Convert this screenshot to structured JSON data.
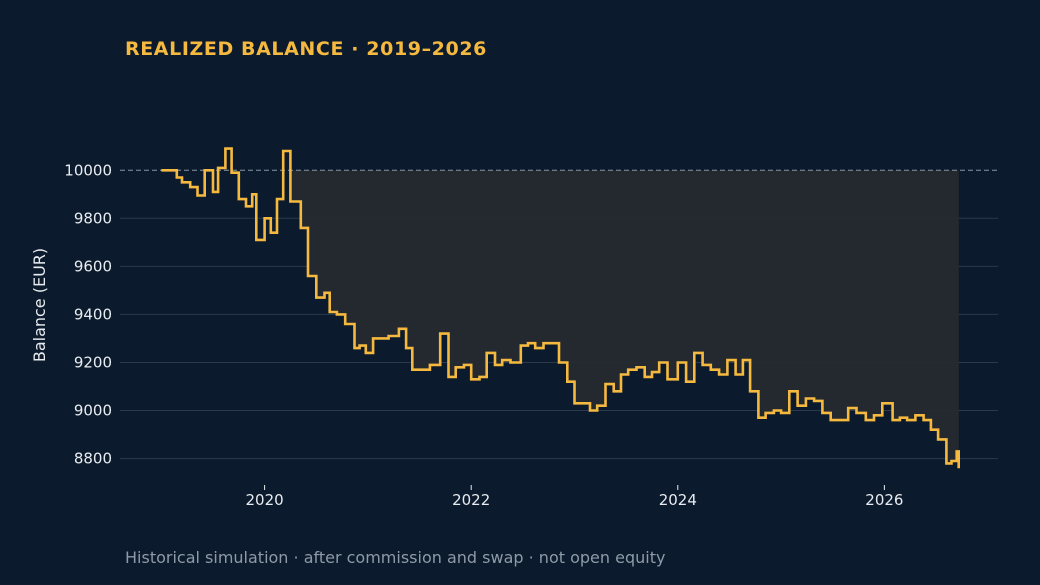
{
  "colors": {
    "background": "#0b1a2c",
    "accent": "#f5b93f",
    "grid": "#2a3a4c",
    "baseline": "#8a96a4",
    "drawdown_fill": "#262a2f",
    "text": "#e8ecf0",
    "muted": "#8f9aa8"
  },
  "chart_data": {
    "type": "line",
    "step": true,
    "title": "REALIZED BALANCE · 2019–2026",
    "footnote": "Historical simulation · after commission and swap · not open equity",
    "xlabel": "",
    "ylabel": "Balance (EUR)",
    "xlim": [
      2018.6,
      2027.1
    ],
    "ylim": [
      8690,
      10230
    ],
    "xticks": [
      2020,
      2022,
      2024,
      2026
    ],
    "yticks": [
      8800,
      9000,
      9200,
      9400,
      9600,
      9800,
      10000
    ],
    "grid": true,
    "baseline": 10000,
    "drawdown_shading": {
      "reference": 10000,
      "from_x": 2020.25,
      "to_x": 2026.72
    },
    "series": [
      {
        "x": [
          2019.0,
          2019.15,
          2019.2,
          2019.28,
          2019.35,
          2019.42,
          2019.5,
          2019.55,
          2019.62,
          2019.68,
          2019.75,
          2019.82,
          2019.88,
          2019.92,
          2019.97,
          2020.0,
          2020.06,
          2020.12,
          2020.18,
          2020.25,
          2020.35,
          2020.42,
          2020.5,
          2020.58,
          2020.63,
          2020.7,
          2020.78,
          2020.87,
          2020.92,
          2020.98,
          2021.05,
          2021.12,
          2021.2,
          2021.3,
          2021.37,
          2021.43,
          2021.5,
          2021.6,
          2021.7,
          2021.78,
          2021.85,
          2021.93,
          2022.0,
          2022.08,
          2022.15,
          2022.23,
          2022.3,
          2022.38,
          2022.48,
          2022.55,
          2022.62,
          2022.7,
          2022.78,
          2022.85,
          2022.93,
          2023.0,
          2023.08,
          2023.15,
          2023.22,
          2023.3,
          2023.38,
          2023.45,
          2023.52,
          2023.6,
          2023.68,
          2023.75,
          2023.82,
          2023.9,
          2024.0,
          2024.08,
          2024.16,
          2024.24,
          2024.32,
          2024.4,
          2024.48,
          2024.56,
          2024.63,
          2024.7,
          2024.78,
          2024.85,
          2024.93,
          2025.0,
          2025.08,
          2025.16,
          2025.24,
          2025.32,
          2025.4,
          2025.48,
          2025.56,
          2025.65,
          2025.73,
          2025.82,
          2025.9,
          2025.98,
          2026.08,
          2026.15,
          2026.22,
          2026.3,
          2026.38,
          2026.45,
          2026.52,
          2026.6,
          2026.65,
          2026.7,
          2026.72
        ],
        "y": [
          10000,
          9970,
          9950,
          9930,
          9895,
          10000,
          9910,
          10010,
          10090,
          9990,
          9880,
          9850,
          9900,
          9710,
          9710,
          9800,
          9740,
          9880,
          10080,
          9870,
          9760,
          9560,
          9470,
          9490,
          9410,
          9400,
          9360,
          9260,
          9270,
          9240,
          9300,
          9300,
          9310,
          9340,
          9260,
          9170,
          9170,
          9190,
          9320,
          9140,
          9180,
          9190,
          9130,
          9140,
          9240,
          9190,
          9210,
          9200,
          9270,
          9280,
          9260,
          9280,
          9280,
          9200,
          9120,
          9030,
          9030,
          9000,
          9020,
          9110,
          9080,
          9150,
          9170,
          9180,
          9140,
          9160,
          9200,
          9130,
          9200,
          9120,
          9240,
          9190,
          9170,
          9150,
          9210,
          9150,
          9210,
          9080,
          8970,
          8990,
          9000,
          8990,
          9080,
          9020,
          9050,
          9040,
          8990,
          8960,
          8960,
          9010,
          8990,
          8960,
          8980,
          9030,
          8960,
          8970,
          8960,
          8980,
          8960,
          8920,
          8880,
          8780,
          8790,
          8830,
          8760
        ]
      }
    ]
  }
}
